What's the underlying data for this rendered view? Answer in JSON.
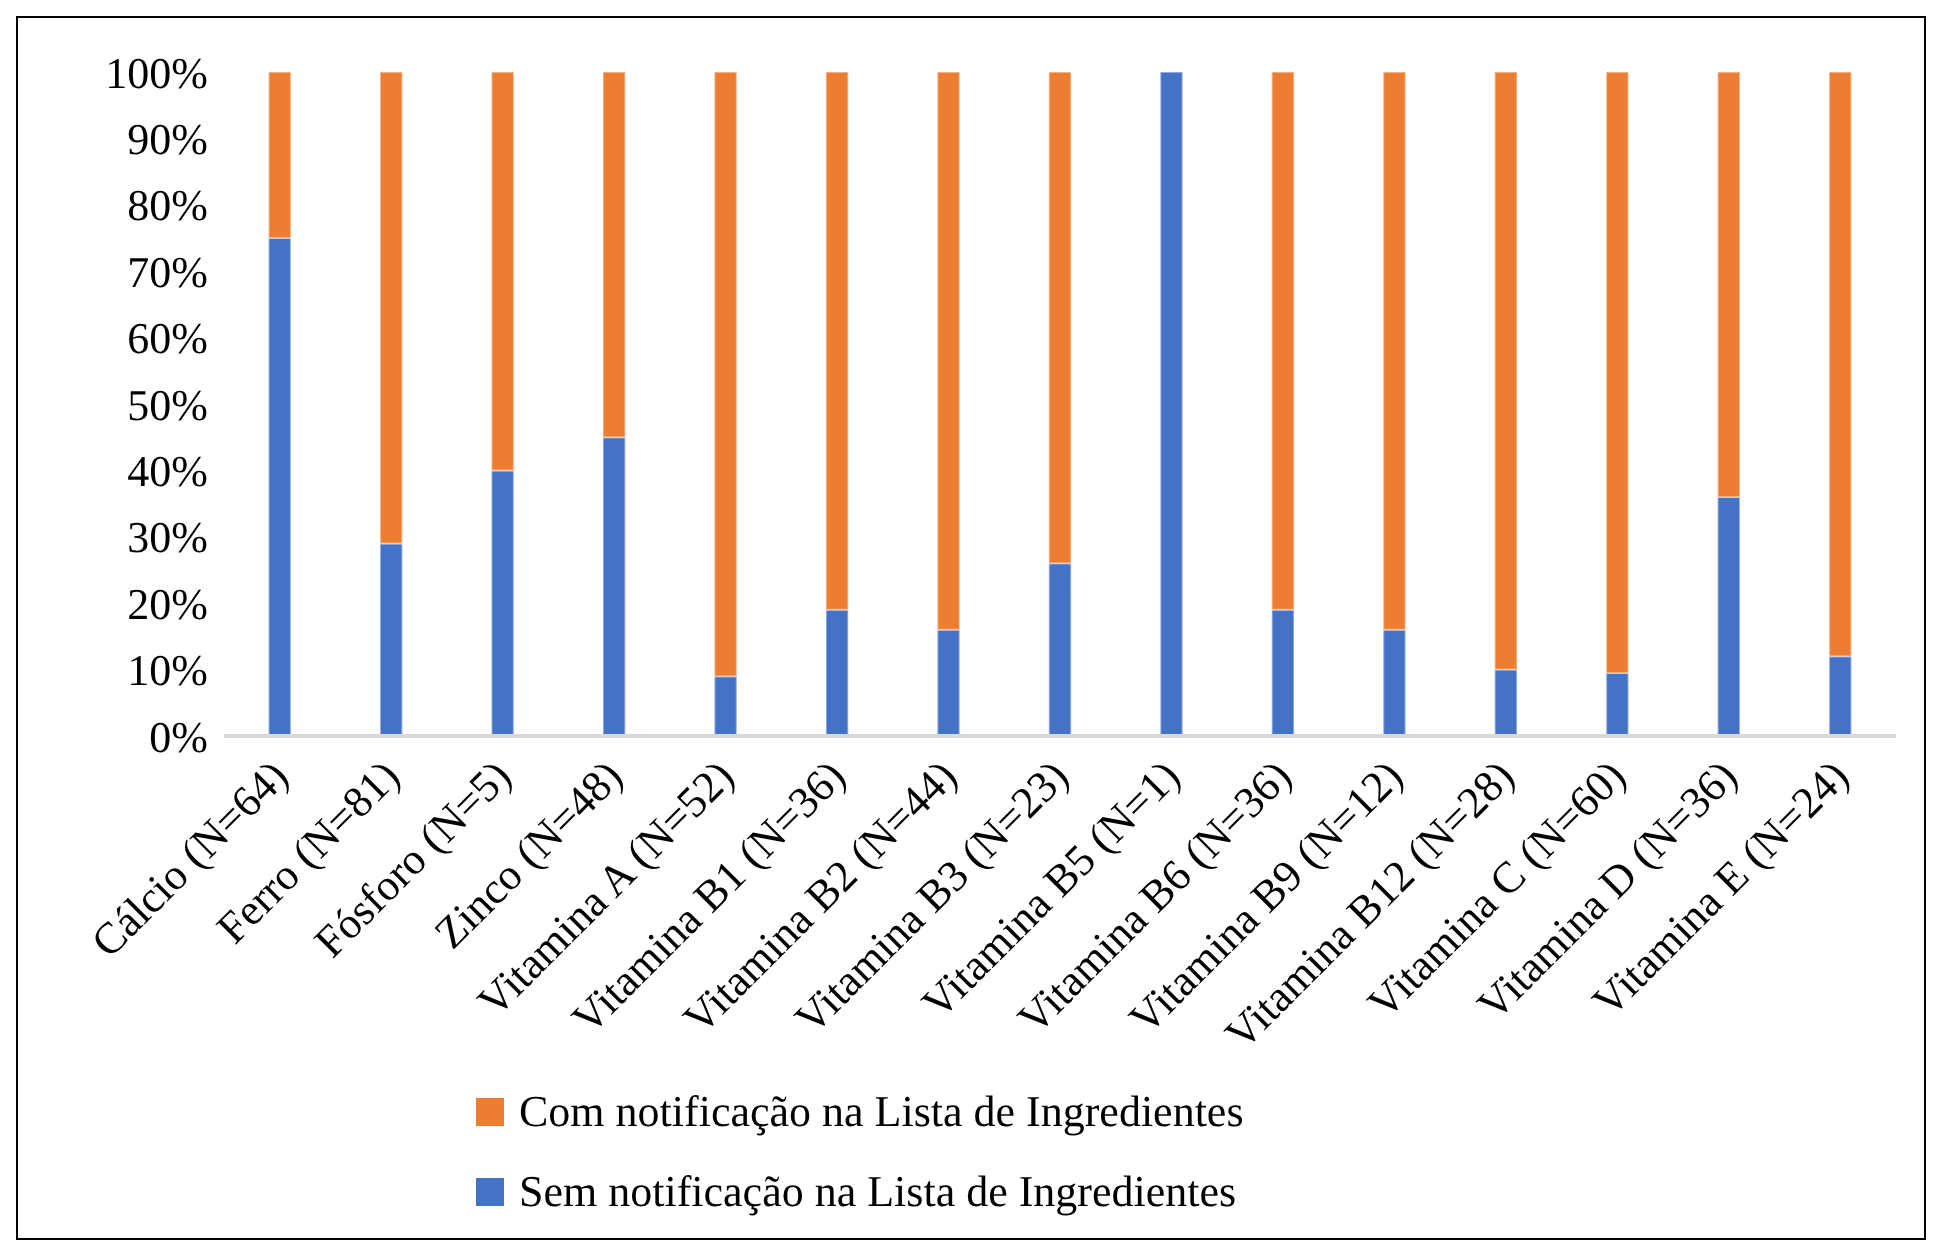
{
  "chart_data": {
    "type": "bar",
    "stacked": true,
    "categories": [
      "Cálcio (N=64)",
      "Ferro (N=81)",
      "Fósforo (N=5)",
      "Zinco (N=48)",
      "Vitamina A (N=52)",
      "Vitamina B1 (N=36)",
      "Vitamina B2 (N=44)",
      "Vitamina B3 (N=23)",
      "Vitamina B5 (N=1)",
      "Vitamina B6 (N=36)",
      "Vitamina B9 (N=12)",
      "Vitamina B12 (N=28)",
      "Vitamina C (N=60)",
      "Vitamina D (N=36)",
      "Vitamina E (N=24)"
    ],
    "series": [
      {
        "name": "Sem notificação na Lista de Ingredientes",
        "color": "#4472c4",
        "values": [
          75,
          29,
          40,
          45,
          9,
          19,
          16,
          26,
          100,
          19,
          16,
          10,
          9.5,
          36,
          12
        ]
      },
      {
        "name": "Com notificação na Lista de Ingredientes",
        "color": "#ed7d31",
        "values": [
          25,
          71,
          60,
          55,
          91,
          81,
          84,
          74,
          0,
          81,
          84,
          90,
          90.5,
          64,
          88
        ]
      }
    ],
    "ylim": [
      0,
      100
    ],
    "yticks": [
      {
        "value": 0,
        "label": "0%"
      },
      {
        "value": 10,
        "label": "10%"
      },
      {
        "value": 20,
        "label": "20%"
      },
      {
        "value": 30,
        "label": "30%"
      },
      {
        "value": 40,
        "label": "40%"
      },
      {
        "value": 50,
        "label": "50%"
      },
      {
        "value": 60,
        "label": "60%"
      },
      {
        "value": 70,
        "label": "70%"
      },
      {
        "value": 80,
        "label": "80%"
      },
      {
        "value": 90,
        "label": "90%"
      },
      {
        "value": 100,
        "label": "100%"
      }
    ],
    "grid": false,
    "legend": "bottom"
  }
}
